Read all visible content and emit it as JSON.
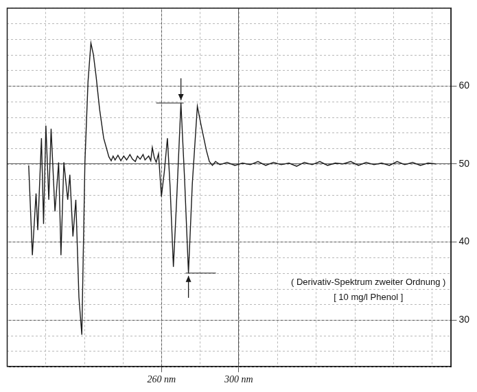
{
  "chart_data": {
    "type": "line",
    "annotations": [
      "( Derivativ-Spektrum zweiter Ordnung )",
      "[ 10 mg/l Phenol ]"
    ],
    "xlim": [
      180,
      410
    ],
    "xticks": [
      {
        "value": 260,
        "label": "260 nm"
      },
      {
        "value": 300,
        "label": "300 nm"
      }
    ],
    "ylim": [
      24,
      70
    ],
    "yticks": [
      30,
      40,
      50,
      60
    ],
    "grid": true,
    "color": "#1a1a1a",
    "line_style": "solid",
    "markers": [
      {
        "x": 270.1,
        "y": 57.8,
        "direction": "down"
      },
      {
        "x": 274.0,
        "y": 36.0,
        "direction": "up"
      }
    ],
    "x": [
      191.3,
      193.2,
      195.1,
      196.0,
      197.9,
      199.0,
      200.2,
      201.7,
      202.9,
      204.9,
      206.8,
      208.0,
      209.5,
      211.5,
      212.6,
      214.2,
      215.7,
      217.3,
      218.8,
      220.4,
      222.0,
      223.5,
      224.8,
      226.2,
      228.0,
      230.1,
      232.8,
      234.0,
      235.0,
      236.0,
      237.5,
      239.0,
      240.5,
      242.0,
      243.7,
      245.0,
      246.5,
      247.6,
      249.0,
      250.5,
      251.5,
      253.4,
      254.5,
      255.3,
      256.3,
      257.3,
      258.5,
      260.0,
      261.5,
      263.1,
      264.5,
      266.2,
      268.0,
      270.1,
      272.0,
      274.0,
      276.0,
      278.6,
      280.5,
      283.3,
      284.8,
      286.4,
      288.0,
      290.3,
      294.0,
      298.0,
      302.0,
      306.0,
      310.0,
      314.0,
      318.0,
      322.0,
      326.0,
      330.0,
      334.0,
      338.0,
      342.0,
      346.0,
      350.0,
      354.0,
      358.0,
      362.0,
      366.0,
      370.0,
      374.0,
      378.0,
      382.0,
      386.0,
      390.0,
      394.0,
      398.0,
      402.0
    ],
    "values": [
      49.8,
      38.3,
      46.2,
      41.5,
      53.3,
      42.3,
      54.9,
      45.4,
      54.5,
      43.9,
      50.2,
      38.3,
      50.2,
      45.4,
      48.6,
      40.7,
      45.4,
      32.9,
      28.1,
      50.2,
      60.5,
      65.5,
      64.0,
      61.2,
      57.0,
      53.3,
      50.9,
      50.4,
      51.0,
      50.5,
      51.1,
      50.4,
      51.0,
      50.5,
      51.2,
      50.6,
      50.3,
      51.0,
      50.6,
      51.2,
      50.5,
      51.0,
      50.4,
      52.1,
      50.8,
      50.2,
      51.3,
      45.8,
      49.0,
      53.3,
      47.0,
      36.8,
      46.0,
      57.8,
      48.0,
      36.0,
      47.5,
      57.4,
      55.0,
      51.7,
      50.3,
      49.8,
      50.3,
      49.9,
      50.2,
      49.8,
      50.1,
      49.9,
      50.3,
      49.8,
      50.2,
      49.9,
      50.1,
      49.7,
      50.2,
      49.9,
      50.3,
      49.8,
      50.1,
      50.0,
      50.3,
      49.8,
      50.2,
      49.9,
      50.1,
      49.8,
      50.3,
      49.9,
      50.2,
      49.8,
      50.1,
      50.0
    ]
  }
}
